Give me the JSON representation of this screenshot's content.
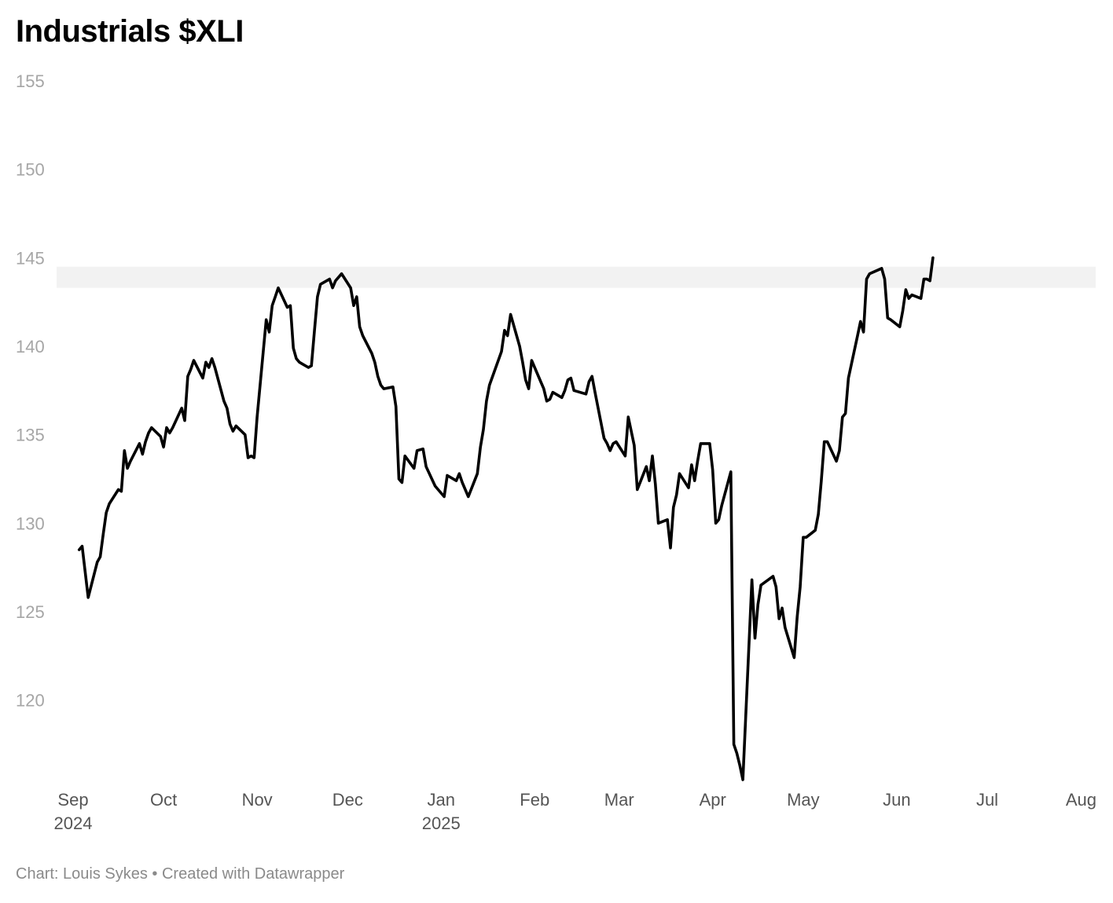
{
  "title": "Industrials $XLI",
  "footer": "Chart: Louis Sykes • Created with Datawrapper",
  "colors": {
    "line": "#000000",
    "band": "#f2f2f2",
    "ytick": "#a6a6a6",
    "xtick": "#555555"
  },
  "chart_data": {
    "type": "line",
    "title": "Industrials $XLI",
    "ylim": [
      115.5,
      155
    ],
    "yticks": [
      120,
      125,
      130,
      135,
      140,
      145,
      150,
      155
    ],
    "xlim": [
      "2024-09-01",
      "2025-08-01"
    ],
    "xticks": [
      {
        "date": "2024-09-01",
        "label": "Sep",
        "year": "2024"
      },
      {
        "date": "2024-10-01",
        "label": "Oct",
        "year": ""
      },
      {
        "date": "2024-11-01",
        "label": "Nov",
        "year": ""
      },
      {
        "date": "2024-12-01",
        "label": "Dec",
        "year": ""
      },
      {
        "date": "2025-01-01",
        "label": "Jan",
        "year": "2025"
      },
      {
        "date": "2025-02-01",
        "label": "Feb",
        "year": ""
      },
      {
        "date": "2025-03-01",
        "label": "Mar",
        "year": ""
      },
      {
        "date": "2025-04-01",
        "label": "Apr",
        "year": ""
      },
      {
        "date": "2025-05-01",
        "label": "May",
        "year": ""
      },
      {
        "date": "2025-06-01",
        "label": "Jun",
        "year": ""
      },
      {
        "date": "2025-07-01",
        "label": "Jul",
        "year": ""
      },
      {
        "date": "2025-08-01",
        "label": "Aug",
        "year": ""
      }
    ],
    "highlight_band": {
      "y_from": 143.3,
      "y_to": 144.5
    },
    "grid": false,
    "series": [
      {
        "points": [
          [
            "2024-09-03",
            128.5
          ],
          [
            "2024-09-04",
            128.7
          ],
          [
            "2024-09-06",
            125.8
          ],
          [
            "2024-09-09",
            127.8
          ],
          [
            "2024-09-10",
            128.1
          ],
          [
            "2024-09-11",
            129.4
          ],
          [
            "2024-09-12",
            130.6
          ],
          [
            "2024-09-13",
            131.1
          ],
          [
            "2024-09-16",
            131.9
          ],
          [
            "2024-09-17",
            131.8
          ],
          [
            "2024-09-18",
            134.1
          ],
          [
            "2024-09-19",
            133.1
          ],
          [
            "2024-09-20",
            133.5
          ],
          [
            "2024-09-23",
            134.5
          ],
          [
            "2024-09-24",
            133.9
          ],
          [
            "2024-09-25",
            134.6
          ],
          [
            "2024-09-26",
            135.1
          ],
          [
            "2024-09-27",
            135.4
          ],
          [
            "2024-09-30",
            134.9
          ],
          [
            "2024-10-01",
            134.3
          ],
          [
            "2024-10-02",
            135.4
          ],
          [
            "2024-10-03",
            135.1
          ],
          [
            "2024-10-04",
            135.4
          ],
          [
            "2024-10-07",
            136.5
          ],
          [
            "2024-10-08",
            135.8
          ],
          [
            "2024-10-09",
            138.3
          ],
          [
            "2024-10-10",
            138.7
          ],
          [
            "2024-10-11",
            139.2
          ],
          [
            "2024-10-14",
            138.2
          ],
          [
            "2024-10-15",
            139.1
          ],
          [
            "2024-10-16",
            138.8
          ],
          [
            "2024-10-17",
            139.3
          ],
          [
            "2024-10-18",
            138.8
          ],
          [
            "2024-10-21",
            136.9
          ],
          [
            "2024-10-22",
            136.5
          ],
          [
            "2024-10-23",
            135.6
          ],
          [
            "2024-10-24",
            135.2
          ],
          [
            "2024-10-25",
            135.5
          ],
          [
            "2024-10-28",
            135.0
          ],
          [
            "2024-10-29",
            133.7
          ],
          [
            "2024-10-30",
            133.8
          ],
          [
            "2024-10-31",
            133.7
          ],
          [
            "2024-11-01",
            136.0
          ],
          [
            "2024-11-04",
            141.5
          ],
          [
            "2024-11-05",
            140.8
          ],
          [
            "2024-11-06",
            142.3
          ],
          [
            "2024-11-07",
            142.8
          ],
          [
            "2024-11-08",
            143.3
          ],
          [
            "2024-11-11",
            142.2
          ],
          [
            "2024-11-12",
            142.3
          ],
          [
            "2024-11-13",
            139.9
          ],
          [
            "2024-11-14",
            139.3
          ],
          [
            "2024-11-15",
            139.1
          ],
          [
            "2024-11-18",
            138.8
          ],
          [
            "2024-11-19",
            138.9
          ],
          [
            "2024-11-20",
            140.9
          ],
          [
            "2024-11-21",
            142.8
          ],
          [
            "2024-11-22",
            143.5
          ],
          [
            "2024-11-25",
            143.8
          ],
          [
            "2024-11-26",
            143.3
          ],
          [
            "2024-11-27",
            143.7
          ],
          [
            "2024-11-29",
            144.1
          ],
          [
            "2024-12-02",
            143.3
          ],
          [
            "2024-12-03",
            142.3
          ],
          [
            "2024-12-04",
            142.8
          ],
          [
            "2024-12-05",
            141.1
          ],
          [
            "2024-12-06",
            140.6
          ],
          [
            "2024-12-09",
            139.6
          ],
          [
            "2024-12-10",
            139.1
          ],
          [
            "2024-12-11",
            138.3
          ],
          [
            "2024-12-12",
            137.8
          ],
          [
            "2024-12-13",
            137.6
          ],
          [
            "2024-12-16",
            137.7
          ],
          [
            "2024-12-17",
            136.6
          ],
          [
            "2024-12-18",
            132.5
          ],
          [
            "2024-12-19",
            132.3
          ],
          [
            "2024-12-20",
            133.8
          ],
          [
            "2024-12-23",
            133.1
          ],
          [
            "2024-12-24",
            134.1
          ],
          [
            "2024-12-26",
            134.2
          ],
          [
            "2024-12-27",
            133.2
          ],
          [
            "2024-12-30",
            132.1
          ],
          [
            "2024-12-31",
            131.9
          ],
          [
            "2025-01-02",
            131.5
          ],
          [
            "2025-01-03",
            132.7
          ],
          [
            "2025-01-06",
            132.4
          ],
          [
            "2025-01-07",
            132.8
          ],
          [
            "2025-01-08",
            132.3
          ],
          [
            "2025-01-10",
            131.5
          ],
          [
            "2025-01-13",
            132.8
          ],
          [
            "2025-01-14",
            134.3
          ],
          [
            "2025-01-15",
            135.3
          ],
          [
            "2025-01-16",
            136.9
          ],
          [
            "2025-01-17",
            137.8
          ],
          [
            "2025-01-21",
            139.7
          ],
          [
            "2025-01-22",
            140.9
          ],
          [
            "2025-01-23",
            140.6
          ],
          [
            "2025-01-24",
            141.8
          ],
          [
            "2025-01-27",
            140.0
          ],
          [
            "2025-01-28",
            139.1
          ],
          [
            "2025-01-29",
            138.1
          ],
          [
            "2025-01-30",
            137.6
          ],
          [
            "2025-01-31",
            139.2
          ],
          [
            "2025-02-03",
            138.0
          ],
          [
            "2025-02-04",
            137.6
          ],
          [
            "2025-02-05",
            136.9
          ],
          [
            "2025-02-06",
            137.0
          ],
          [
            "2025-02-07",
            137.4
          ],
          [
            "2025-02-10",
            137.1
          ],
          [
            "2025-02-11",
            137.5
          ],
          [
            "2025-02-12",
            138.1
          ],
          [
            "2025-02-13",
            138.2
          ],
          [
            "2025-02-14",
            137.5
          ],
          [
            "2025-02-18",
            137.3
          ],
          [
            "2025-02-19",
            138.0
          ],
          [
            "2025-02-20",
            138.3
          ],
          [
            "2025-02-21",
            137.4
          ],
          [
            "2025-02-24",
            134.8
          ],
          [
            "2025-02-25",
            134.5
          ],
          [
            "2025-02-26",
            134.1
          ],
          [
            "2025-02-27",
            134.5
          ],
          [
            "2025-02-28",
            134.6
          ],
          [
            "2025-03-03",
            133.8
          ],
          [
            "2025-03-04",
            136.0
          ],
          [
            "2025-03-06",
            134.4
          ],
          [
            "2025-03-07",
            131.9
          ],
          [
            "2025-03-10",
            133.2
          ],
          [
            "2025-03-11",
            132.4
          ],
          [
            "2025-03-12",
            133.8
          ],
          [
            "2025-03-13",
            132.2
          ],
          [
            "2025-03-14",
            130.0
          ],
          [
            "2025-03-17",
            130.2
          ],
          [
            "2025-03-18",
            128.6
          ],
          [
            "2025-03-19",
            130.9
          ],
          [
            "2025-03-20",
            131.6
          ],
          [
            "2025-03-21",
            132.8
          ],
          [
            "2025-03-24",
            132.0
          ],
          [
            "2025-03-25",
            133.3
          ],
          [
            "2025-03-26",
            132.4
          ],
          [
            "2025-03-27",
            133.5
          ],
          [
            "2025-03-28",
            134.5
          ],
          [
            "2025-03-31",
            134.5
          ],
          [
            "2025-04-01",
            133.0
          ],
          [
            "2025-04-02",
            130.0
          ],
          [
            "2025-04-03",
            130.2
          ],
          [
            "2025-04-04",
            131.0
          ],
          [
            "2025-04-07",
            132.9
          ],
          [
            "2025-04-08",
            117.5
          ],
          [
            "2025-04-09",
            117.0
          ],
          [
            "2025-04-10",
            116.3
          ],
          [
            "2025-04-11",
            115.5
          ],
          [
            "2025-04-14",
            126.8
          ],
          [
            "2025-04-15",
            123.5
          ],
          [
            "2025-04-16",
            125.4
          ],
          [
            "2025-04-17",
            126.5
          ],
          [
            "2025-04-21",
            127.0
          ],
          [
            "2025-04-22",
            126.4
          ],
          [
            "2025-04-23",
            124.6
          ],
          [
            "2025-04-24",
            125.2
          ],
          [
            "2025-04-25",
            124.1
          ],
          [
            "2025-04-28",
            122.4
          ],
          [
            "2025-04-29",
            124.7
          ],
          [
            "2025-04-30",
            126.4
          ],
          [
            "2025-05-01",
            129.2
          ],
          [
            "2025-05-02",
            129.2
          ],
          [
            "2025-05-05",
            129.6
          ],
          [
            "2025-05-06",
            130.5
          ],
          [
            "2025-05-07",
            132.4
          ],
          [
            "2025-05-08",
            134.6
          ],
          [
            "2025-05-09",
            134.6
          ],
          [
            "2025-05-12",
            133.5
          ],
          [
            "2025-05-13",
            134.1
          ],
          [
            "2025-05-14",
            136.0
          ],
          [
            "2025-05-15",
            136.2
          ],
          [
            "2025-05-16",
            138.2
          ],
          [
            "2025-05-19",
            140.6
          ],
          [
            "2025-05-20",
            141.4
          ],
          [
            "2025-05-21",
            140.8
          ],
          [
            "2025-05-22",
            143.8
          ],
          [
            "2025-05-23",
            144.1
          ],
          [
            "2025-05-27",
            144.4
          ],
          [
            "2025-05-28",
            143.8
          ],
          [
            "2025-05-29",
            141.6
          ],
          [
            "2025-05-30",
            141.5
          ],
          [
            "2025-06-02",
            141.1
          ],
          [
            "2025-06-03",
            142.0
          ],
          [
            "2025-06-04",
            143.2
          ],
          [
            "2025-06-05",
            142.7
          ],
          [
            "2025-06-06",
            142.9
          ],
          [
            "2025-06-09",
            142.7
          ],
          [
            "2025-06-10",
            143.8
          ],
          [
            "2025-06-11",
            143.8
          ],
          [
            "2025-06-12",
            143.7
          ],
          [
            "2025-06-13",
            145.0
          ]
        ]
      }
    ]
  }
}
